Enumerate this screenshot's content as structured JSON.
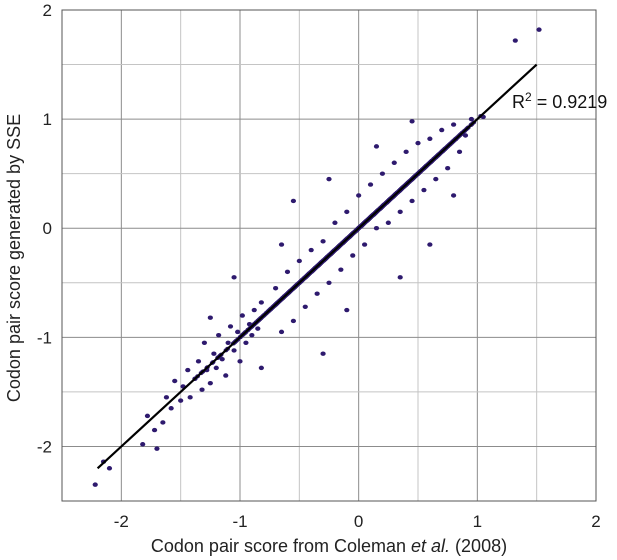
{
  "chart_data": {
    "type": "scatter",
    "title": "",
    "xlabel_parts": [
      "Codon pair score from Coleman ",
      "et al.",
      " (2008)"
    ],
    "ylabel": "Codon pair score generated by SSE",
    "xlim": [
      -2.5,
      2
    ],
    "ylim": [
      -2.5,
      2
    ],
    "x_ticks": [
      -2,
      -1,
      0,
      1,
      2
    ],
    "y_ticks": [
      -2,
      -1,
      0,
      1,
      2
    ],
    "grid": true,
    "marker_color": "#2e1a6e",
    "line_color": "#000000",
    "regression": {
      "slope": 1.0,
      "intercept": 0.0,
      "x_range": [
        -2.2,
        1.5
      ],
      "r2_base": "R",
      "r2_sup": "2",
      "r2_value": " = 0.9219"
    },
    "series": [
      {
        "points": [
          [
            -2.22,
            -2.35
          ],
          [
            -2.1,
            -2.2
          ],
          [
            -2.15,
            -2.14
          ],
          [
            -1.82,
            -1.98
          ],
          [
            -1.7,
            -2.02
          ],
          [
            -1.78,
            -1.72
          ],
          [
            -1.72,
            -1.85
          ],
          [
            -1.65,
            -1.78
          ],
          [
            -1.62,
            -1.55
          ],
          [
            -1.58,
            -1.65
          ],
          [
            -1.55,
            -1.4
          ],
          [
            -1.5,
            -1.58
          ],
          [
            -1.48,
            -1.45
          ],
          [
            -1.44,
            -1.3
          ],
          [
            -1.42,
            -1.55
          ],
          [
            -1.38,
            -1.38
          ],
          [
            -1.35,
            -1.22
          ],
          [
            -1.32,
            -1.48
          ],
          [
            -1.3,
            -1.05
          ],
          [
            -1.28,
            -1.3
          ],
          [
            -1.25,
            -1.42
          ],
          [
            -1.22,
            -1.15
          ],
          [
            -1.2,
            -1.28
          ],
          [
            -1.18,
            -0.98
          ],
          [
            -1.15,
            -1.2
          ],
          [
            -1.12,
            -1.35
          ],
          [
            -1.1,
            -1.05
          ],
          [
            -1.08,
            -0.9
          ],
          [
            -1.05,
            -1.12
          ],
          [
            -1.02,
            -0.95
          ],
          [
            -1.0,
            -1.22
          ],
          [
            -0.98,
            -0.8
          ],
          [
            -0.95,
            -1.05
          ],
          [
            -0.92,
            -0.88
          ],
          [
            -0.9,
            -0.98
          ],
          [
            -0.88,
            -0.75
          ],
          [
            -0.85,
            -0.92
          ],
          [
            -0.82,
            -0.68
          ],
          [
            -1.25,
            -0.82
          ],
          [
            -0.82,
            -1.28
          ],
          [
            -0.7,
            -0.55
          ],
          [
            -0.65,
            -0.95
          ],
          [
            -0.6,
            -0.4
          ],
          [
            -0.55,
            -0.85
          ],
          [
            -0.5,
            -0.3
          ],
          [
            -0.45,
            -0.72
          ],
          [
            -0.4,
            -0.2
          ],
          [
            -0.35,
            -0.6
          ],
          [
            -0.3,
            -0.12
          ],
          [
            -0.25,
            -0.5
          ],
          [
            -0.2,
            0.05
          ],
          [
            -0.15,
            -0.38
          ],
          [
            -0.1,
            0.15
          ],
          [
            -0.05,
            -0.25
          ],
          [
            0.0,
            0.3
          ],
          [
            0.05,
            -0.15
          ],
          [
            0.1,
            0.4
          ],
          [
            0.15,
            0.0
          ],
          [
            0.2,
            0.5
          ],
          [
            0.25,
            0.05
          ],
          [
            0.3,
            0.6
          ],
          [
            0.35,
            0.15
          ],
          [
            0.4,
            0.7
          ],
          [
            0.45,
            0.25
          ],
          [
            0.5,
            0.78
          ],
          [
            0.55,
            0.35
          ],
          [
            0.6,
            0.82
          ],
          [
            0.65,
            0.45
          ],
          [
            0.7,
            0.9
          ],
          [
            0.75,
            0.55
          ],
          [
            0.8,
            0.95
          ],
          [
            0.85,
            0.7
          ],
          [
            0.9,
            0.85
          ],
          [
            0.95,
            1.0
          ],
          [
            1.05,
            1.02
          ],
          [
            1.32,
            1.72
          ],
          [
            1.52,
            1.82
          ],
          [
            0.45,
            0.98
          ],
          [
            -0.55,
            0.25
          ],
          [
            0.6,
            -0.15
          ],
          [
            -0.25,
            0.45
          ],
          [
            0.35,
            -0.45
          ],
          [
            -1.05,
            -0.45
          ],
          [
            -0.3,
            -1.15
          ],
          [
            0.8,
            0.3
          ],
          [
            -0.1,
            -0.75
          ],
          [
            0.15,
            0.75
          ],
          [
            -0.65,
            -0.15
          ]
        ],
        "cloud": {
          "n": 3600,
          "sd_along": 0.42,
          "sd_across": 0.115,
          "mean": -0.02,
          "clip": [
            -1.3,
            0.92
          ],
          "seed": 7
        }
      }
    ]
  }
}
